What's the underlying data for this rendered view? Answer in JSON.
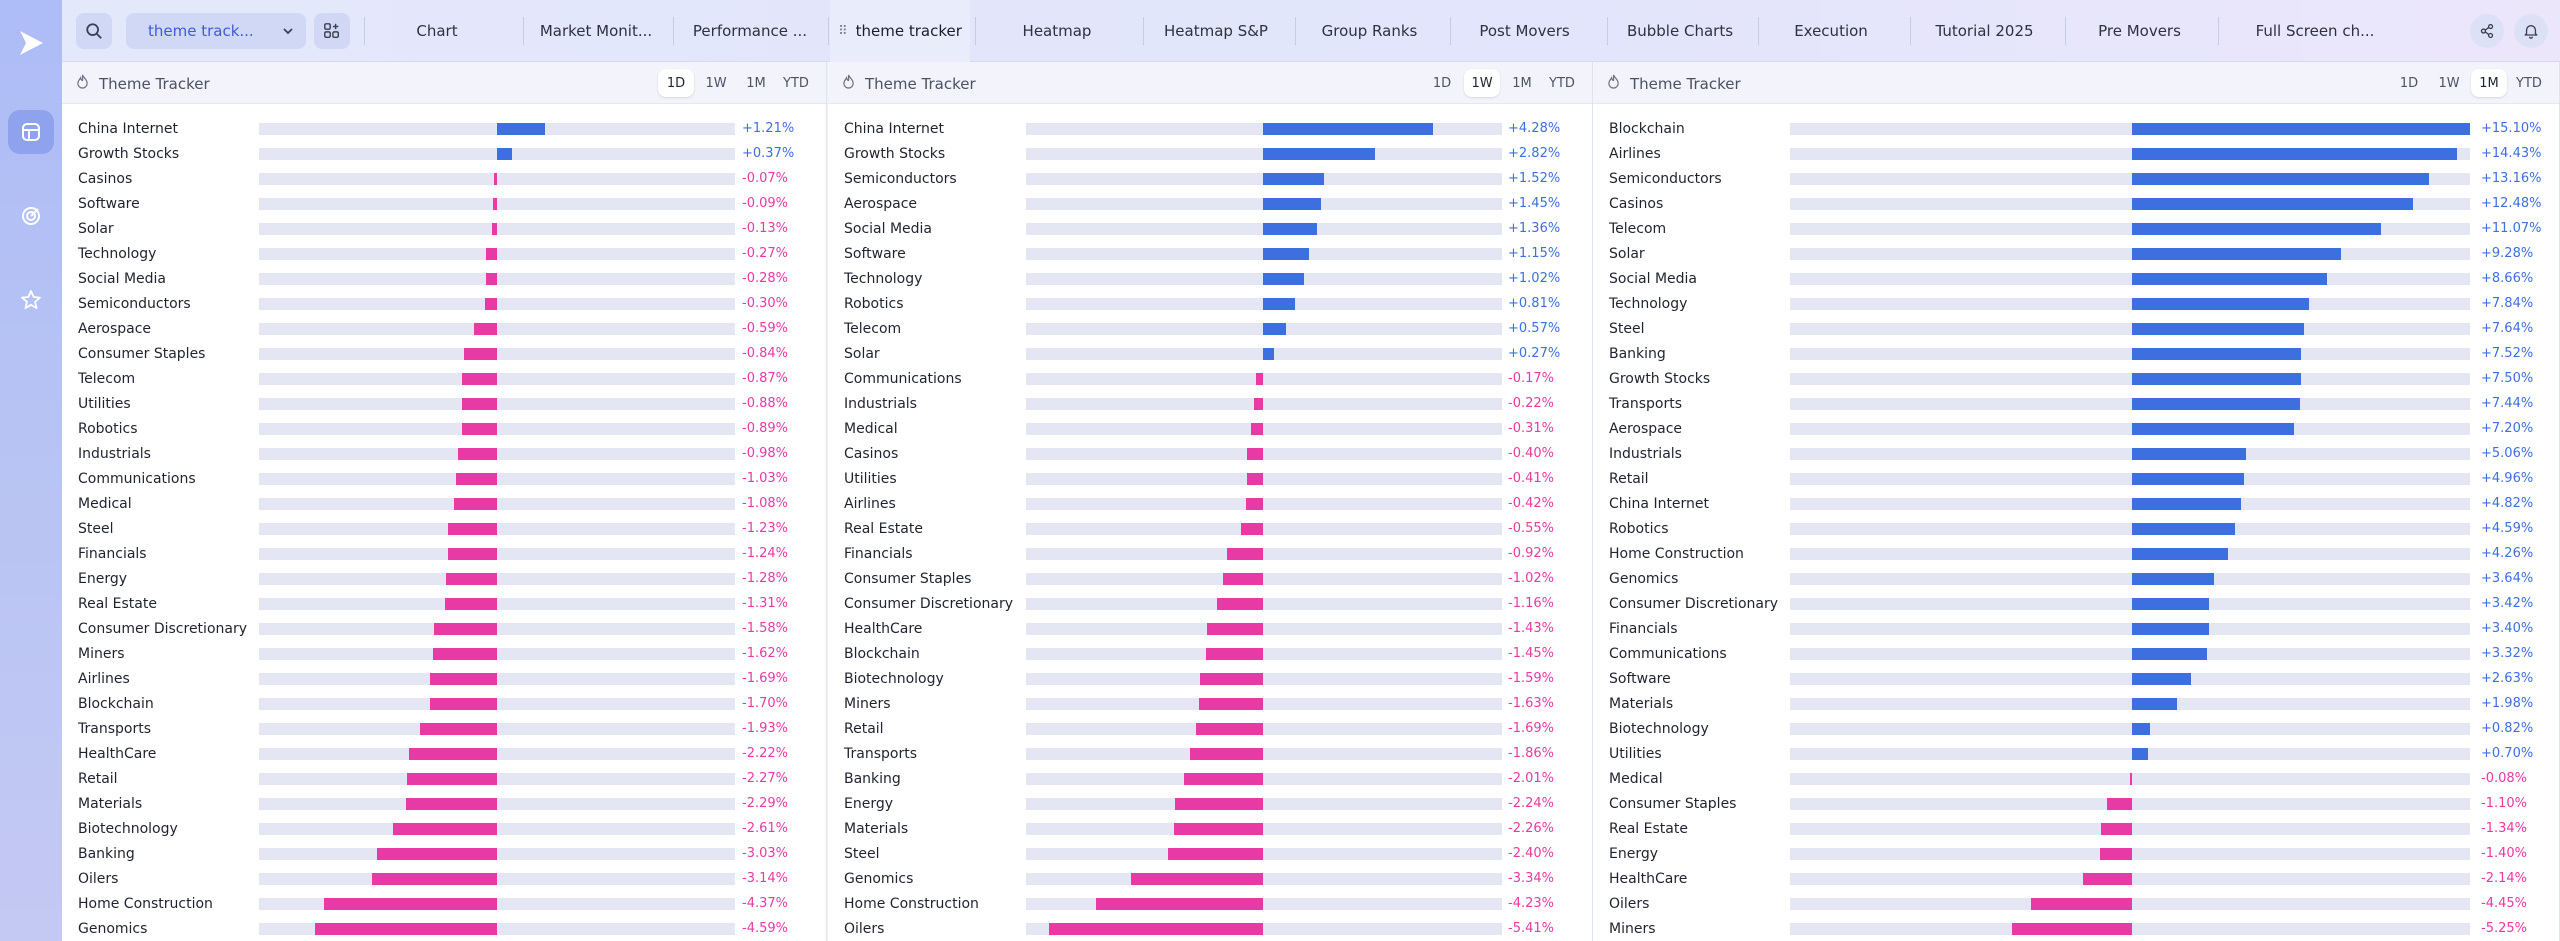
{
  "app": {
    "workspace": "theme track...",
    "accent": "#3e6fe0",
    "positive_color": "#3e6fe0",
    "negative_color": "#e83aa5"
  },
  "tabs": [
    "Chart",
    "Market Monit...",
    "Performance ...",
    "theme tracker",
    "Heatmap",
    "Heatmap S&P",
    "Group Ranks",
    "Post Movers",
    "Bubble Charts",
    "Execution",
    "Tutorial 2025",
    "Pre Movers",
    "Full Screen ch..."
  ],
  "active_tab": 3,
  "icons": {
    "logo": "play-logo-icon",
    "search": "search-icon",
    "add_widget": "widgets-icon",
    "share": "share-icon",
    "bell": "bell-icon",
    "sidebar": [
      "layout-icon",
      "radar-icon",
      "star-icon"
    ]
  },
  "periods": [
    "1D",
    "1W",
    "1M",
    "YTD"
  ],
  "panels": [
    {
      "title": "Theme Tracker",
      "active_period": "1D",
      "max_abs": 6.0,
      "rows": [
        {
          "name": "China Internet",
          "value": 1.21
        },
        {
          "name": "Growth Stocks",
          "value": 0.37
        },
        {
          "name": "Casinos",
          "value": -0.07
        },
        {
          "name": "Software",
          "value": -0.09
        },
        {
          "name": "Solar",
          "value": -0.13
        },
        {
          "name": "Technology",
          "value": -0.27
        },
        {
          "name": "Social Media",
          "value": -0.28
        },
        {
          "name": "Semiconductors",
          "value": -0.3
        },
        {
          "name": "Aerospace",
          "value": -0.59
        },
        {
          "name": "Consumer Staples",
          "value": -0.84
        },
        {
          "name": "Telecom",
          "value": -0.87
        },
        {
          "name": "Utilities",
          "value": -0.88
        },
        {
          "name": "Robotics",
          "value": -0.89
        },
        {
          "name": "Industrials",
          "value": -0.98
        },
        {
          "name": "Communications",
          "value": -1.03
        },
        {
          "name": "Medical",
          "value": -1.08
        },
        {
          "name": "Steel",
          "value": -1.23
        },
        {
          "name": "Financials",
          "value": -1.24
        },
        {
          "name": "Energy",
          "value": -1.28
        },
        {
          "name": "Real Estate",
          "value": -1.31
        },
        {
          "name": "Consumer Discretionary",
          "value": -1.58
        },
        {
          "name": "Miners",
          "value": -1.62
        },
        {
          "name": "Airlines",
          "value": -1.69
        },
        {
          "name": "Blockchain",
          "value": -1.7
        },
        {
          "name": "Transports",
          "value": -1.93
        },
        {
          "name": "HealthCare",
          "value": -2.22
        },
        {
          "name": "Retail",
          "value": -2.27
        },
        {
          "name": "Materials",
          "value": -2.29
        },
        {
          "name": "Biotechnology",
          "value": -2.61
        },
        {
          "name": "Banking",
          "value": -3.03
        },
        {
          "name": "Oilers",
          "value": -3.14
        },
        {
          "name": "Home Construction",
          "value": -4.37
        },
        {
          "name": "Genomics",
          "value": -4.59
        }
      ]
    },
    {
      "title": "Theme Tracker",
      "active_period": "1W",
      "max_abs": 6.0,
      "rows": [
        {
          "name": "China Internet",
          "value": 4.28
        },
        {
          "name": "Growth Stocks",
          "value": 2.82
        },
        {
          "name": "Semiconductors",
          "value": 1.52
        },
        {
          "name": "Aerospace",
          "value": 1.45
        },
        {
          "name": "Social Media",
          "value": 1.36
        },
        {
          "name": "Software",
          "value": 1.15
        },
        {
          "name": "Technology",
          "value": 1.02
        },
        {
          "name": "Robotics",
          "value": 0.81
        },
        {
          "name": "Telecom",
          "value": 0.57
        },
        {
          "name": "Solar",
          "value": 0.27
        },
        {
          "name": "Communications",
          "value": -0.17
        },
        {
          "name": "Industrials",
          "value": -0.22
        },
        {
          "name": "Medical",
          "value": -0.31
        },
        {
          "name": "Casinos",
          "value": -0.4
        },
        {
          "name": "Utilities",
          "value": -0.41
        },
        {
          "name": "Airlines",
          "value": -0.42
        },
        {
          "name": "Real Estate",
          "value": -0.55
        },
        {
          "name": "Financials",
          "value": -0.92
        },
        {
          "name": "Consumer Staples",
          "value": -1.02
        },
        {
          "name": "Consumer Discretionary",
          "value": -1.16
        },
        {
          "name": "HealthCare",
          "value": -1.43
        },
        {
          "name": "Blockchain",
          "value": -1.45
        },
        {
          "name": "Biotechnology",
          "value": -1.59
        },
        {
          "name": "Miners",
          "value": -1.63
        },
        {
          "name": "Retail",
          "value": -1.69
        },
        {
          "name": "Transports",
          "value": -1.86
        },
        {
          "name": "Banking",
          "value": -2.01
        },
        {
          "name": "Energy",
          "value": -2.24
        },
        {
          "name": "Materials",
          "value": -2.26
        },
        {
          "name": "Steel",
          "value": -2.4
        },
        {
          "name": "Genomics",
          "value": -3.34
        },
        {
          "name": "Home Construction",
          "value": -4.23
        },
        {
          "name": "Oilers",
          "value": -5.41
        }
      ]
    },
    {
      "title": "Theme Tracker",
      "active_period": "1M",
      "max_abs": 15.0,
      "rows": [
        {
          "name": "Blockchain",
          "value": 15.1
        },
        {
          "name": "Airlines",
          "value": 14.43
        },
        {
          "name": "Semiconductors",
          "value": 13.16
        },
        {
          "name": "Casinos",
          "value": 12.48
        },
        {
          "name": "Telecom",
          "value": 11.07
        },
        {
          "name": "Solar",
          "value": 9.28
        },
        {
          "name": "Social Media",
          "value": 8.66
        },
        {
          "name": "Technology",
          "value": 7.84
        },
        {
          "name": "Steel",
          "value": 7.64
        },
        {
          "name": "Banking",
          "value": 7.52
        },
        {
          "name": "Growth Stocks",
          "value": 7.5
        },
        {
          "name": "Transports",
          "value": 7.44
        },
        {
          "name": "Aerospace",
          "value": 7.2
        },
        {
          "name": "Industrials",
          "value": 5.06
        },
        {
          "name": "Retail",
          "value": 4.96
        },
        {
          "name": "China Internet",
          "value": 4.82
        },
        {
          "name": "Robotics",
          "value": 4.59
        },
        {
          "name": "Home Construction",
          "value": 4.26
        },
        {
          "name": "Genomics",
          "value": 3.64
        },
        {
          "name": "Consumer Discretionary",
          "value": 3.42
        },
        {
          "name": "Financials",
          "value": 3.4
        },
        {
          "name": "Communications",
          "value": 3.32
        },
        {
          "name": "Software",
          "value": 2.63
        },
        {
          "name": "Materials",
          "value": 1.98
        },
        {
          "name": "Biotechnology",
          "value": 0.82
        },
        {
          "name": "Utilities",
          "value": 0.7
        },
        {
          "name": "Medical",
          "value": -0.08
        },
        {
          "name": "Consumer Staples",
          "value": -1.1
        },
        {
          "name": "Real Estate",
          "value": -1.34
        },
        {
          "name": "Energy",
          "value": -1.4
        },
        {
          "name": "HealthCare",
          "value": -2.14
        },
        {
          "name": "Oilers",
          "value": -4.45
        },
        {
          "name": "Miners",
          "value": -5.25
        }
      ]
    }
  ]
}
